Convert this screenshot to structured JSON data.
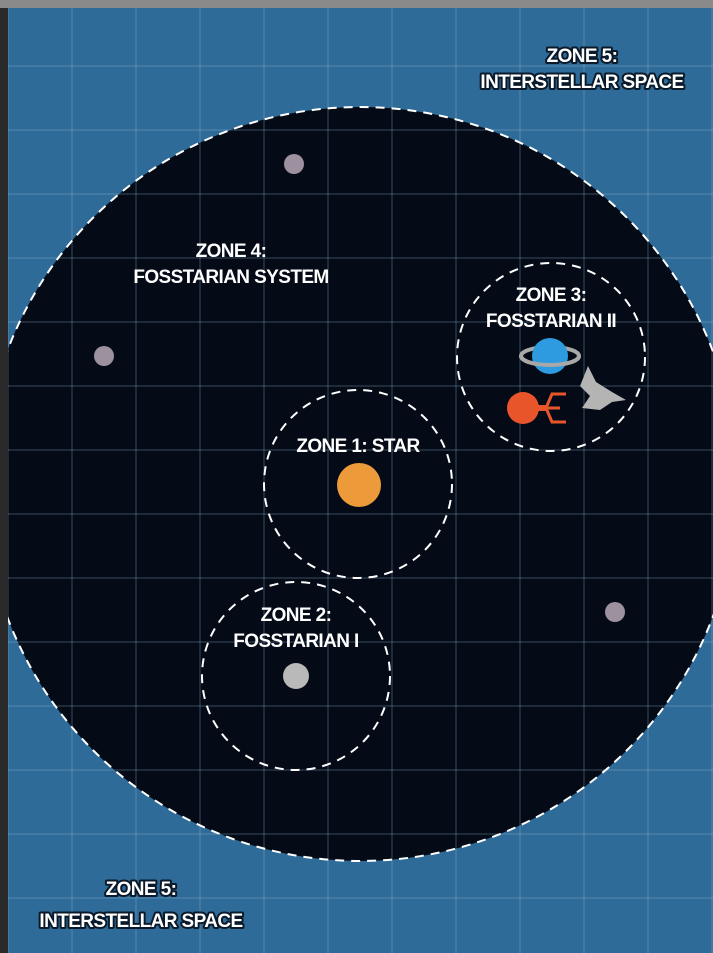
{
  "zones": [
    {
      "lines": [
        "ZONE 5:",
        "INTERSTELLAR SPACE"
      ]
    },
    {
      "lines": [
        "ZONE 4:",
        "FOSSTARIAN SYSTEM"
      ]
    },
    {
      "lines": [
        "ZONE 3:",
        "FOSSTARIAN II"
      ]
    },
    {
      "lines": [
        "ZONE 1: STAR"
      ]
    },
    {
      "lines": [
        "ZONE 2:",
        "FOSSTARIAN I"
      ]
    },
    {
      "lines": [
        "ZONE 5:",
        "INTERSTELLAR SPACE"
      ]
    }
  ]
}
